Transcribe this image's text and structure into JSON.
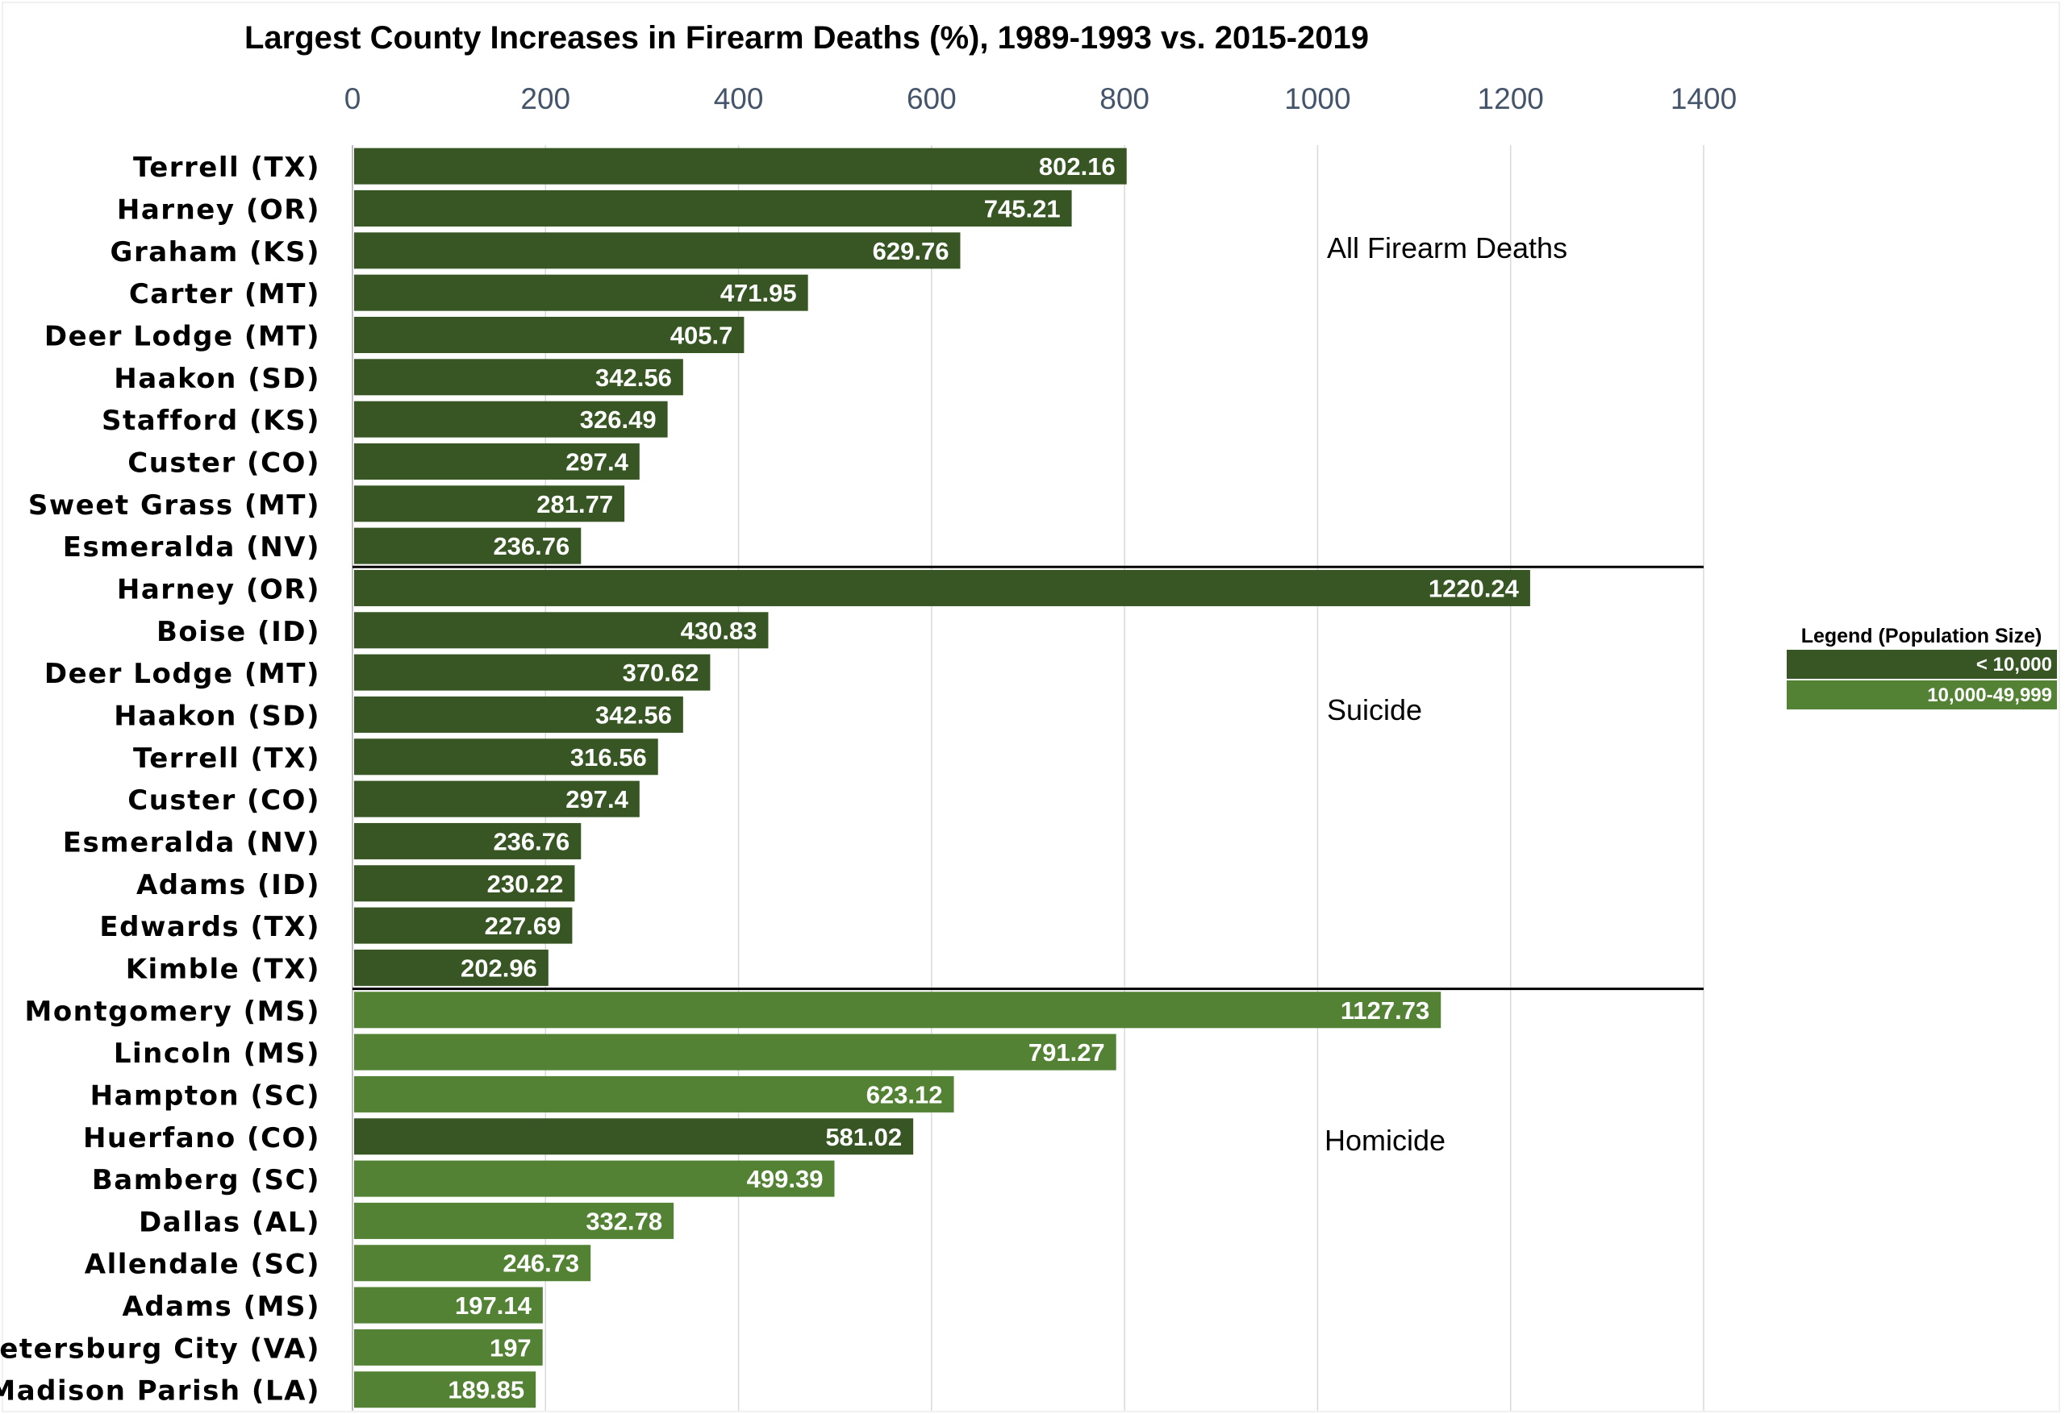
{
  "chart_data": {
    "type": "bar",
    "orientation": "horizontal",
    "title": "Largest County Increases in Firearm Deaths (%), 1989-1993 vs. 2015-2019",
    "xlabel": "",
    "ylabel": "",
    "xlim": [
      0,
      1400
    ],
    "ticks": [
      "0",
      "200",
      "400",
      "600",
      "800",
      "1000",
      "1200",
      "1400"
    ],
    "grid": true,
    "legend": {
      "title": "Legend (Population Size)",
      "position": "right",
      "items": [
        {
          "label": "< 10,000",
          "color": "#375623"
        },
        {
          "label": "10,000-49,999",
          "color": "#548235"
        }
      ]
    },
    "groups": [
      {
        "name": "All Firearm Deaths",
        "bars": [
          {
            "label": "Terrell (TX)",
            "value": 802.16,
            "display": "802.16",
            "pop": 0
          },
          {
            "label": "Harney (OR)",
            "value": 745.21,
            "display": "745.21",
            "pop": 0
          },
          {
            "label": "Graham (KS)",
            "value": 629.76,
            "display": "629.76",
            "pop": 0
          },
          {
            "label": "Carter (MT)",
            "value": 471.95,
            "display": "471.95",
            "pop": 0
          },
          {
            "label": "Deer Lodge (MT)",
            "value": 405.7,
            "display": "405.7",
            "pop": 0
          },
          {
            "label": "Haakon (SD)",
            "value": 342.56,
            "display": "342.56",
            "pop": 0
          },
          {
            "label": "Stafford (KS)",
            "value": 326.49,
            "display": "326.49",
            "pop": 0
          },
          {
            "label": "Custer (CO)",
            "value": 297.4,
            "display": "297.4",
            "pop": 0
          },
          {
            "label": "Sweet Grass (MT)",
            "value": 281.77,
            "display": "281.77",
            "pop": 0
          },
          {
            "label": "Esmeralda (NV)",
            "value": 236.76,
            "display": "236.76",
            "pop": 0
          }
        ]
      },
      {
        "name": "Suicide",
        "bars": [
          {
            "label": "Harney (OR)",
            "value": 1220.24,
            "display": "1220.24",
            "pop": 0
          },
          {
            "label": "Boise (ID)",
            "value": 430.83,
            "display": "430.83",
            "pop": 0
          },
          {
            "label": "Deer Lodge (MT)",
            "value": 370.62,
            "display": "370.62",
            "pop": 0
          },
          {
            "label": "Haakon (SD)",
            "value": 342.56,
            "display": "342.56",
            "pop": 0
          },
          {
            "label": "Terrell (TX)",
            "value": 316.56,
            "display": "316.56",
            "pop": 0
          },
          {
            "label": "Custer (CO)",
            "value": 297.4,
            "display": "297.4",
            "pop": 0
          },
          {
            "label": "Esmeralda (NV)",
            "value": 236.76,
            "display": "236.76",
            "pop": 0
          },
          {
            "label": "Adams (ID)",
            "value": 230.22,
            "display": "230.22",
            "pop": 0
          },
          {
            "label": "Edwards (TX)",
            "value": 227.69,
            "display": "227.69",
            "pop": 0
          },
          {
            "label": "Kimble (TX)",
            "value": 202.96,
            "display": "202.96",
            "pop": 0
          }
        ]
      },
      {
        "name": "Homicide",
        "bars": [
          {
            "label": "Montgomery (MS)",
            "value": 1127.73,
            "display": "1127.73",
            "pop": 1
          },
          {
            "label": "Lincoln (MS)",
            "value": 791.27,
            "display": "791.27",
            "pop": 1
          },
          {
            "label": "Hampton (SC)",
            "value": 623.12,
            "display": "623.12",
            "pop": 1
          },
          {
            "label": "Huerfano (CO)",
            "value": 581.02,
            "display": "581.02",
            "pop": 0
          },
          {
            "label": "Bamberg (SC)",
            "value": 499.39,
            "display": "499.39",
            "pop": 1
          },
          {
            "label": "Dallas (AL)",
            "value": 332.78,
            "display": "332.78",
            "pop": 1
          },
          {
            "label": "Allendale (SC)",
            "value": 246.73,
            "display": "246.73",
            "pop": 1
          },
          {
            "label": "Adams (MS)",
            "value": 197.14,
            "display": "197.14",
            "pop": 1
          },
          {
            "label": "Petersburg City (VA)",
            "value": 197,
            "display": "197",
            "pop": 1
          },
          {
            "label": "Madison Parish (LA)",
            "value": 189.85,
            "display": "189.85",
            "pop": 1
          }
        ]
      }
    ]
  }
}
